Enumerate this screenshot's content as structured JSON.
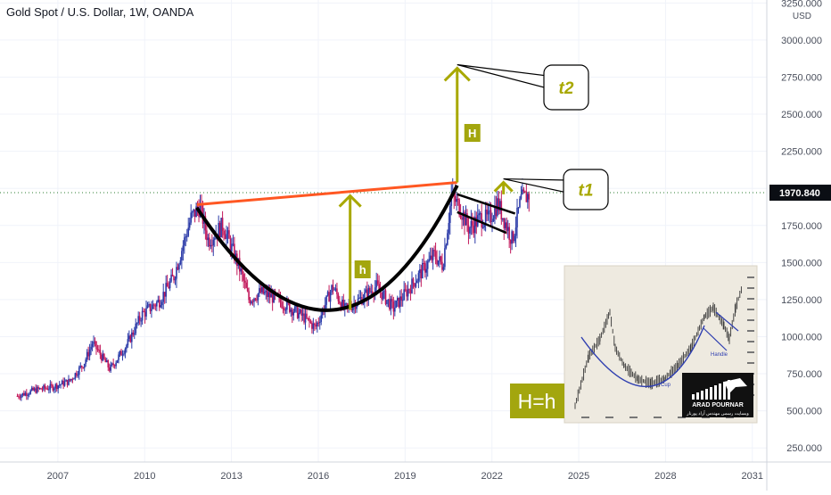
{
  "header": {
    "title": "Gold Spot / U.S. Dollar, 1W, OANDA"
  },
  "colors": {
    "background": "#ffffff",
    "grid": "#f0f3fa",
    "axis_text": "#4a4f5c",
    "candle_up": "#2a3aa8",
    "candle_down": "#c2185b",
    "neckline": "#ff5722",
    "arrow": "#a8a800",
    "price_tag": "#0b0e14",
    "inset_bg": "#eeeae0",
    "hbox_bg": "#a3a60e"
  },
  "chart_data": {
    "type": "candlestick",
    "symbol": "Gold Spot / U.S. Dollar",
    "interval": "1W",
    "broker": "OANDA",
    "currency": "USD",
    "last_price": "1970.840",
    "xlim": [
      2005.0,
      2031.5
    ],
    "ylim": [
      155,
      3270
    ],
    "x_ticks": [
      "2007",
      "2010",
      "2013",
      "2016",
      "2019",
      "2022",
      "2025",
      "2028",
      "2031"
    ],
    "y_ticks": [
      "250.000",
      "500.000",
      "750.000",
      "1000.000",
      "1250.000",
      "1500.000",
      "1750.000",
      "2000.000",
      "2250.000",
      "2500.000",
      "2750.000",
      "3000.000",
      "3250.000"
    ],
    "price_path": [
      [
        2005.6,
        600
      ],
      [
        2006.2,
        640
      ],
      [
        2006.8,
        660
      ],
      [
        2007.4,
        700
      ],
      [
        2007.9,
        820
      ],
      [
        2008.2,
        960
      ],
      [
        2008.8,
        780
      ],
      [
        2009.4,
        950
      ],
      [
        2009.9,
        1150
      ],
      [
        2010.5,
        1240
      ],
      [
        2011.0,
        1400
      ],
      [
        2011.6,
        1800
      ],
      [
        2011.9,
        1880
      ],
      [
        2012.2,
        1650
      ],
      [
        2012.7,
        1750
      ],
      [
        2013.3,
        1450
      ],
      [
        2013.6,
        1250
      ],
      [
        2014.0,
        1300
      ],
      [
        2014.5,
        1260
      ],
      [
        2015.0,
        1200
      ],
      [
        2015.5,
        1130
      ],
      [
        2015.9,
        1060
      ],
      [
        2016.5,
        1340
      ],
      [
        2016.9,
        1180
      ],
      [
        2017.5,
        1260
      ],
      [
        2018.0,
        1340
      ],
      [
        2018.6,
        1190
      ],
      [
        2019.0,
        1290
      ],
      [
        2019.5,
        1420
      ],
      [
        2020.0,
        1550
      ],
      [
        2020.3,
        1480
      ],
      [
        2020.6,
        1950
      ],
      [
        2020.9,
        1870
      ],
      [
        2021.2,
        1730
      ],
      [
        2021.6,
        1800
      ],
      [
        2021.9,
        1790
      ],
      [
        2022.2,
        1900
      ],
      [
        2022.7,
        1650
      ],
      [
        2023.0,
        1920
      ],
      [
        2023.3,
        1960
      ]
    ],
    "annotations": {
      "target_1": "t1",
      "target_2": "t2",
      "cup_height": "h",
      "projected_height": "H",
      "equality": "H=h",
      "neckline": [
        [
          2011.8,
          1890
        ],
        [
          2020.8,
          2040
        ]
      ],
      "cup_curve": [
        [
          2011.8,
          1870
        ],
        [
          2016.5,
          1180
        ],
        [
          2020.8,
          2020
        ]
      ],
      "handle_channel": [
        [
          2020.8,
          1960
        ],
        [
          2022.8,
          1830
        ],
        [
          2020.8,
          1840
        ],
        [
          2022.5,
          1700
        ]
      ],
      "arrow_h": {
        "x": 2017.1,
        "from": 1180,
        "to": 1950
      },
      "arrow_H": {
        "x": 2020.8,
        "from": 2040,
        "to": 2810
      },
      "arrow_t1": {
        "x": 2022.4,
        "from": 1960,
        "to": 2040
      }
    },
    "inset": {
      "description_text": [
        "Cup",
        "Handle"
      ],
      "logo_text": "ARAD POURNAR",
      "logo_subtext": "وبسایت رسمی مهندس آراد پورنار"
    }
  }
}
